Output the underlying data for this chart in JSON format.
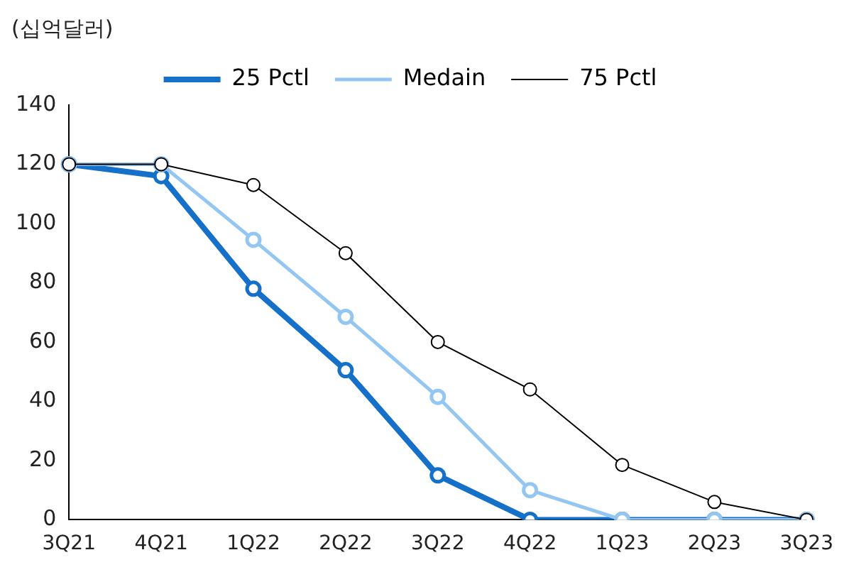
{
  "chart_data": {
    "type": "line",
    "ylabel": "(십억달러)",
    "categories": [
      "3Q21",
      "4Q21",
      "1Q22",
      "2Q22",
      "3Q22",
      "4Q22",
      "1Q23",
      "2Q23",
      "3Q23"
    ],
    "series": [
      {
        "name": "25 Pctl",
        "color": "#1470c8",
        "values": [
          120,
          116,
          78,
          50.5,
          15,
          0,
          0,
          0,
          0
        ]
      },
      {
        "name": "Medain",
        "color": "#94c6f2",
        "values": [
          120,
          120,
          94.5,
          68.5,
          41.5,
          10,
          0,
          0,
          0
        ]
      },
      {
        "name": "75 Pctl",
        "color": "#000000",
        "values": [
          120,
          120,
          113,
          90,
          60,
          44,
          18.5,
          6,
          0
        ]
      }
    ],
    "ylim": [
      0,
      140
    ],
    "yticks": [
      0,
      20,
      40,
      60,
      80,
      100,
      120,
      140
    ],
    "grid": false,
    "legend": "top",
    "marker": "circle",
    "line_style": "solid"
  }
}
